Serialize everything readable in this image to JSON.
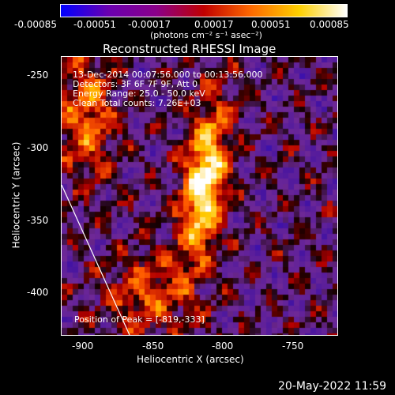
{
  "colorbar": {
    "ticks": [
      "-0.00085",
      "-0.00051",
      "-0.00017",
      "0.00017",
      "0.00051",
      "0.00085"
    ],
    "unit_label": "(photons cm⁻² s⁻¹ asec⁻²)",
    "colors": [
      "#0000ff",
      "#6a00b0",
      "#8a008a",
      "#c00000",
      "#ff6a00",
      "#ffd000",
      "#ffffff"
    ]
  },
  "plot": {
    "title": "Reconstructed RHESSI Image",
    "xlabel": "Heliocentric X (arcsec)",
    "ylabel": "Heliocentric Y (arcsec)",
    "xticks": [
      "-900",
      "-850",
      "-800",
      "-750"
    ],
    "yticks": [
      "-250",
      "-300",
      "-350",
      "-400"
    ],
    "info": {
      "time": "13-Dec-2014 00:07:56.000 to 00:13:56.000",
      "detectors": "Detectors: 3F 6F 7F 9F, Att 0",
      "energy": "Energy Range: 25.0 - 50.0 keV",
      "clean": "Clean    Total counts: 7.26E+03"
    },
    "peak": "Position of Peak = [-819,-333]"
  },
  "footer": {
    "timestamp": "20-May-2022 11:59"
  }
}
